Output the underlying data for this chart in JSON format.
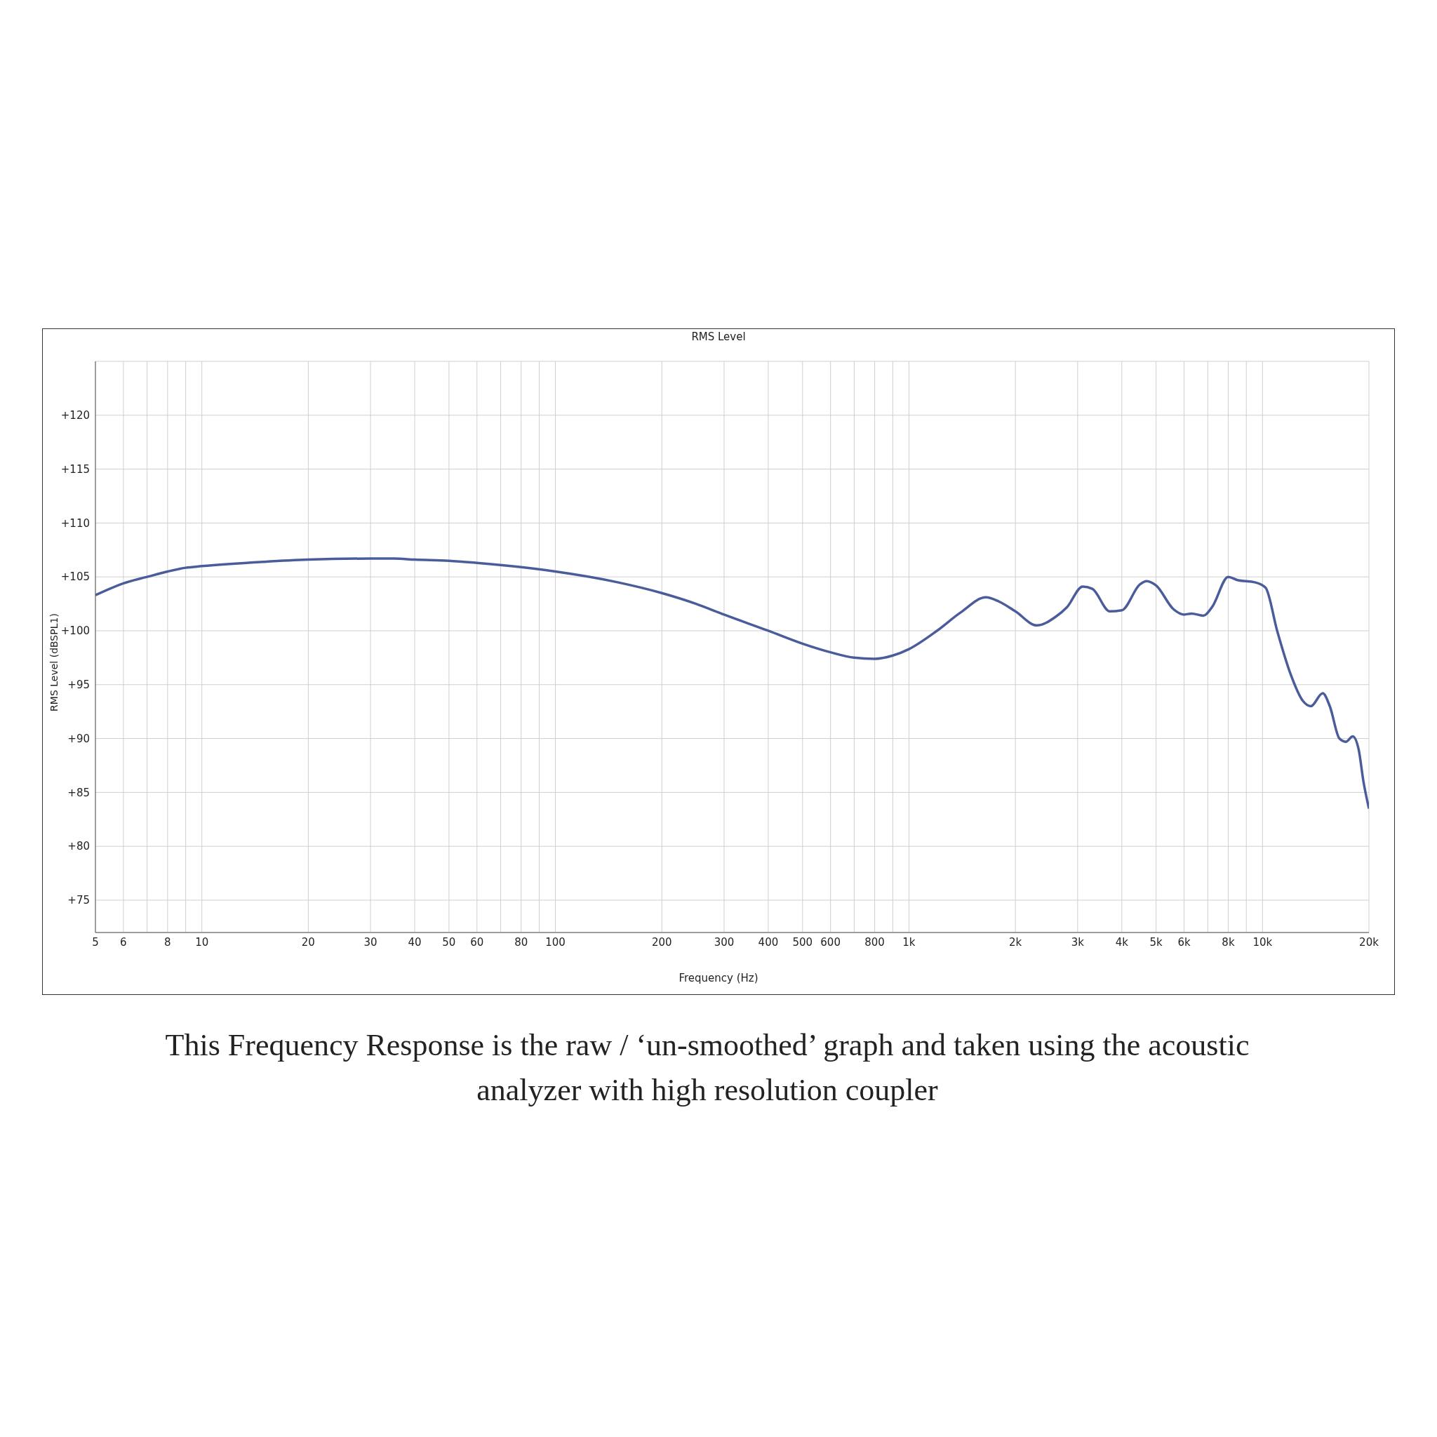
{
  "chart_data": {
    "type": "line",
    "title": "RMS Level",
    "xlabel": "Frequency (Hz)",
    "ylabel": "RMS Level (dBSPL1)",
    "annotations": [
      "This Frequency Response is the raw / ‘un-smoothed’ graph and taken using the acoustic analyzer with high resolution coupler"
    ],
    "log": "x",
    "grid": true,
    "marker": "none",
    "line_style": "solid",
    "xlim": [
      5,
      20000
    ],
    "ylim": [
      72,
      125
    ],
    "xticks": [
      5,
      6,
      {
        "value": 7,
        "label": null
      },
      8,
      {
        "value": 9,
        "label": null
      },
      10,
      20,
      30,
      40,
      50,
      60,
      {
        "value": 70,
        "label": null
      },
      80,
      {
        "value": 90,
        "label": null
      },
      100,
      200,
      300,
      400,
      500,
      600,
      {
        "value": 700,
        "label": null
      },
      800,
      {
        "value": 900,
        "label": null
      },
      {
        "value": 1000,
        "label": "1k"
      },
      {
        "value": 2000,
        "label": "2k"
      },
      {
        "value": 3000,
        "label": "3k"
      },
      {
        "value": 4000,
        "label": "4k"
      },
      {
        "value": 5000,
        "label": "5k"
      },
      {
        "value": 6000,
        "label": "6k"
      },
      {
        "value": 7000,
        "label": null
      },
      {
        "value": 8000,
        "label": "8k"
      },
      {
        "value": 9000,
        "label": null
      },
      {
        "value": 10000,
        "label": "10k"
      },
      {
        "value": 20000,
        "label": "20k"
      }
    ],
    "yticks": [
      {
        "value": 75,
        "label": "+75"
      },
      {
        "value": 80,
        "label": "+80"
      },
      {
        "value": 85,
        "label": "+85"
      },
      {
        "value": 90,
        "label": "+90"
      },
      {
        "value": 95,
        "label": "+95"
      },
      {
        "value": 100,
        "label": "+100"
      },
      {
        "value": 105,
        "label": "+105"
      },
      {
        "value": 110,
        "label": "+110"
      },
      {
        "value": 115,
        "label": "+115"
      },
      {
        "value": 120,
        "label": "+120"
      }
    ],
    "series": [
      {
        "color": "#4a5d9a",
        "x": [
          5,
          6,
          7,
          8,
          9,
          10,
          15,
          20,
          30,
          35,
          40,
          50,
          60,
          80,
          100,
          150,
          200,
          250,
          300,
          400,
          500,
          600,
          700,
          800,
          900,
          1000,
          1200,
          1400,
          1650,
          1800,
          2000,
          2300,
          2600,
          2800,
          3100,
          3300,
          3700,
          4000,
          4500,
          4700,
          5000,
          5600,
          6000,
          6300,
          6800,
          7200,
          8000,
          8500,
          9500,
          10200,
          11000,
          12000,
          13000,
          13700,
          14800,
          15500,
          16500,
          17200,
          18000,
          18700,
          19300,
          20000
        ],
        "values": [
          103.3,
          104.4,
          105.0,
          105.5,
          105.85,
          106.0,
          106.4,
          106.6,
          106.7,
          106.7,
          106.6,
          106.5,
          106.3,
          105.9,
          105.5,
          104.5,
          103.5,
          102.5,
          101.5,
          100.0,
          98.8,
          98.0,
          97.5,
          97.4,
          97.7,
          98.3,
          100.0,
          101.7,
          103.1,
          102.7,
          101.8,
          100.5,
          101.3,
          102.2,
          104.1,
          103.9,
          101.8,
          101.9,
          104.3,
          104.6,
          104.2,
          102.0,
          101.5,
          101.6,
          101.4,
          102.2,
          105.0,
          104.7,
          104.5,
          104.0,
          100.0,
          96.0,
          93.5,
          93.0,
          94.2,
          93.0,
          90.0,
          89.7,
          90.2,
          89.0,
          86.0,
          83.5
        ]
      }
    ]
  }
}
